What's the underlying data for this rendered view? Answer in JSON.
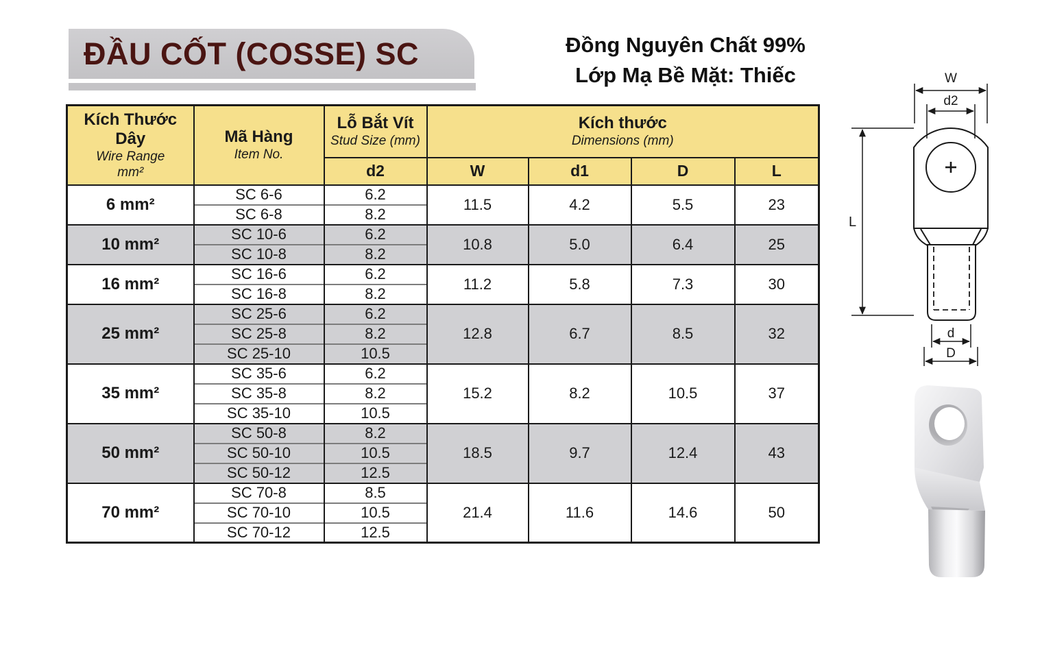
{
  "header": {
    "banner_title": "ĐẦU CỐT (COSSE) SC",
    "material_line1": "Đồng Nguyên Chất 99%",
    "material_line2": "Lớp Mạ Bề Mặt: Thiếc"
  },
  "table": {
    "col1": {
      "main": "Kích Thước Dây",
      "sub1": "Wire Range",
      "sub2": "mm²"
    },
    "col2": {
      "main": "Mã Hàng",
      "sub": "Item No."
    },
    "col3": {
      "main": "Lỗ Bắt Vít",
      "sub": "Stud Size (mm)",
      "sub2": "d2"
    },
    "dims": {
      "main": "Kích thước",
      "sub": "Dimensions (mm)",
      "cols": [
        "W",
        "d1",
        "D",
        "L"
      ]
    },
    "groups": [
      {
        "wire": "6 mm²",
        "shaded": false,
        "items": [
          {
            "code": "SC 6-6",
            "d2": "6.2"
          },
          {
            "code": "SC 6-8",
            "d2": "8.2"
          }
        ],
        "dims": {
          "W": "11.5",
          "d1": "4.2",
          "D": "5.5",
          "L": "23"
        }
      },
      {
        "wire": "10 mm²",
        "shaded": true,
        "items": [
          {
            "code": "SC 10-6",
            "d2": "6.2"
          },
          {
            "code": "SC 10-8",
            "d2": "8.2"
          }
        ],
        "dims": {
          "W": "10.8",
          "d1": "5.0",
          "D": "6.4",
          "L": "25"
        }
      },
      {
        "wire": "16 mm²",
        "shaded": false,
        "items": [
          {
            "code": "SC 16-6",
            "d2": "6.2"
          },
          {
            "code": "SC 16-8",
            "d2": "8.2"
          }
        ],
        "dims": {
          "W": "11.2",
          "d1": "5.8",
          "D": "7.3",
          "L": "30"
        }
      },
      {
        "wire": "25 mm²",
        "shaded": true,
        "items": [
          {
            "code": "SC 25-6",
            "d2": "6.2"
          },
          {
            "code": "SC 25-8",
            "d2": "8.2"
          },
          {
            "code": "SC 25-10",
            "d2": "10.5"
          }
        ],
        "dims": {
          "W": "12.8",
          "d1": "6.7",
          "D": "8.5",
          "L": "32"
        }
      },
      {
        "wire": "35 mm²",
        "shaded": false,
        "items": [
          {
            "code": "SC 35-6",
            "d2": "6.2"
          },
          {
            "code": "SC 35-8",
            "d2": "8.2"
          },
          {
            "code": "SC 35-10",
            "d2": "10.5"
          }
        ],
        "dims": {
          "W": "15.2",
          "d1": "8.2",
          "D": "10.5",
          "L": "37"
        }
      },
      {
        "wire": "50 mm²",
        "shaded": true,
        "items": [
          {
            "code": "SC 50-8",
            "d2": "8.2"
          },
          {
            "code": "SC 50-10",
            "d2": "10.5"
          },
          {
            "code": "SC 50-12",
            "d2": "12.5"
          }
        ],
        "dims": {
          "W": "18.5",
          "d1": "9.7",
          "D": "12.4",
          "L": "43"
        }
      },
      {
        "wire": "70 mm²",
        "shaded": false,
        "items": [
          {
            "code": "SC 70-8",
            "d2": "8.5"
          },
          {
            "code": "SC 70-10",
            "d2": "10.5"
          },
          {
            "code": "SC 70-12",
            "d2": "12.5"
          }
        ],
        "dims": {
          "W": "21.4",
          "d1": "11.6",
          "D": "14.6",
          "L": "50"
        }
      }
    ]
  },
  "diagram": {
    "label_w": "W",
    "label_d2": "d2",
    "label_l": "L",
    "label_d": "d",
    "label_dd": "D"
  },
  "colors": {
    "header_yellow": "#f6e08c",
    "row_gray": "#d0d0d3",
    "banner_gray": "#c8c7ca",
    "title_maroon": "#4a1512"
  }
}
